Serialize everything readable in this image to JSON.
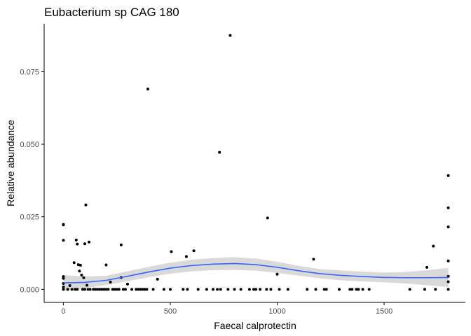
{
  "chart_data": {
    "type": "scatter",
    "title": "Eubacterium sp CAG 180",
    "xlabel": "Faecal calprotectin",
    "ylabel": "Relative abundance",
    "xlim": [
      -90,
      1880
    ],
    "ylim": [
      -0.0045,
      0.0915
    ],
    "x_ticks": [
      0,
      500,
      1000,
      1500
    ],
    "x_tick_labels": [
      "0",
      "500",
      "1000",
      "1500"
    ],
    "y_ticks": [
      0.0,
      0.025,
      0.05,
      0.075
    ],
    "y_tick_labels": [
      "0.000",
      "0.025",
      "0.050",
      "0.075"
    ],
    "grid": false,
    "colors": {
      "points": "#000000",
      "smooth_line": "#3366ff",
      "confidence_band": "#d9d9d9",
      "axis": "#000000"
    },
    "points": [
      {
        "x": 0,
        "y": 0.0224
      },
      {
        "x": 0,
        "y": 0.0222
      },
      {
        "x": 0,
        "y": 0.0169
      },
      {
        "x": 0,
        "y": 0.0044
      },
      {
        "x": 0,
        "y": 0.0038
      },
      {
        "x": 0,
        "y": 0.002
      },
      {
        "x": 0,
        "y": 0.0008
      },
      {
        "x": 0,
        "y": 0.0
      },
      {
        "x": 20,
        "y": 0.0
      },
      {
        "x": 30,
        "y": 0.0013
      },
      {
        "x": 40,
        "y": 0.0
      },
      {
        "x": 50,
        "y": 0.0092
      },
      {
        "x": 55,
        "y": 0.0
      },
      {
        "x": 60,
        "y": 0.017
      },
      {
        "x": 65,
        "y": 0.0156
      },
      {
        "x": 65,
        "y": 0.0
      },
      {
        "x": 70,
        "y": 0.0085
      },
      {
        "x": 75,
        "y": 0.0063
      },
      {
        "x": 80,
        "y": 0.0083
      },
      {
        "x": 85,
        "y": 0.0049
      },
      {
        "x": 90,
        "y": 0.0
      },
      {
        "x": 95,
        "y": 0.004
      },
      {
        "x": 100,
        "y": 0.0157
      },
      {
        "x": 100,
        "y": 0.0
      },
      {
        "x": 105,
        "y": 0.0291
      },
      {
        "x": 110,
        "y": 0.0014
      },
      {
        "x": 115,
        "y": 0.0
      },
      {
        "x": 120,
        "y": 0.0163
      },
      {
        "x": 125,
        "y": 0.0
      },
      {
        "x": 140,
        "y": 0.0
      },
      {
        "x": 150,
        "y": 0.0
      },
      {
        "x": 160,
        "y": 0.0
      },
      {
        "x": 170,
        "y": 0.0
      },
      {
        "x": 180,
        "y": 0.0
      },
      {
        "x": 190,
        "y": 0.0
      },
      {
        "x": 200,
        "y": 0.0
      },
      {
        "x": 200,
        "y": 0.0084
      },
      {
        "x": 210,
        "y": 0.0
      },
      {
        "x": 220,
        "y": 0.0025
      },
      {
        "x": 230,
        "y": 0.0
      },
      {
        "x": 240,
        "y": 0.0
      },
      {
        "x": 250,
        "y": 0.0
      },
      {
        "x": 260,
        "y": 0.0
      },
      {
        "x": 270,
        "y": 0.0153
      },
      {
        "x": 270,
        "y": 0.0041
      },
      {
        "x": 280,
        "y": 0.0
      },
      {
        "x": 290,
        "y": 0.0
      },
      {
        "x": 300,
        "y": 0.0018
      },
      {
        "x": 320,
        "y": 0.0
      },
      {
        "x": 340,
        "y": 0.0
      },
      {
        "x": 350,
        "y": 0.0
      },
      {
        "x": 360,
        "y": 0.0
      },
      {
        "x": 370,
        "y": 0.0
      },
      {
        "x": 380,
        "y": 0.0
      },
      {
        "x": 390,
        "y": 0.0
      },
      {
        "x": 395,
        "y": 0.069
      },
      {
        "x": 420,
        "y": 0.0
      },
      {
        "x": 440,
        "y": 0.0035
      },
      {
        "x": 470,
        "y": 0.0
      },
      {
        "x": 500,
        "y": 0.0
      },
      {
        "x": 505,
        "y": 0.013
      },
      {
        "x": 560,
        "y": 0.0
      },
      {
        "x": 575,
        "y": 0.0113
      },
      {
        "x": 580,
        "y": 0.0
      },
      {
        "x": 610,
        "y": 0.0133
      },
      {
        "x": 630,
        "y": 0.0
      },
      {
        "x": 670,
        "y": 0.0
      },
      {
        "x": 700,
        "y": 0.0
      },
      {
        "x": 720,
        "y": 0.0
      },
      {
        "x": 730,
        "y": 0.0472
      },
      {
        "x": 735,
        "y": 0.0
      },
      {
        "x": 770,
        "y": 0.0
      },
      {
        "x": 780,
        "y": 0.0875
      },
      {
        "x": 800,
        "y": 0.0
      },
      {
        "x": 830,
        "y": 0.0
      },
      {
        "x": 870,
        "y": 0.0
      },
      {
        "x": 890,
        "y": 0.0
      },
      {
        "x": 900,
        "y": 0.0
      },
      {
        "x": 920,
        "y": 0.0
      },
      {
        "x": 950,
        "y": 0.0
      },
      {
        "x": 955,
        "y": 0.0246
      },
      {
        "x": 970,
        "y": 0.0
      },
      {
        "x": 1000,
        "y": 0.0052
      },
      {
        "x": 1010,
        "y": 0.0
      },
      {
        "x": 1050,
        "y": 0.0
      },
      {
        "x": 1140,
        "y": 0.0
      },
      {
        "x": 1170,
        "y": 0.0104
      },
      {
        "x": 1180,
        "y": 0.0
      },
      {
        "x": 1220,
        "y": 0.0
      },
      {
        "x": 1230,
        "y": 0.0
      },
      {
        "x": 1290,
        "y": 0.0
      },
      {
        "x": 1340,
        "y": 0.0
      },
      {
        "x": 1350,
        "y": 0.0
      },
      {
        "x": 1370,
        "y": 0.0
      },
      {
        "x": 1380,
        "y": 0.0
      },
      {
        "x": 1400,
        "y": 0.0
      },
      {
        "x": 1430,
        "y": 0.0
      },
      {
        "x": 1620,
        "y": 0.0
      },
      {
        "x": 1690,
        "y": 0.0
      },
      {
        "x": 1700,
        "y": 0.0076
      },
      {
        "x": 1730,
        "y": 0.0149
      },
      {
        "x": 1740,
        "y": 0.0
      },
      {
        "x": 1800,
        "y": 0.0392
      },
      {
        "x": 1800,
        "y": 0.0281
      },
      {
        "x": 1800,
        "y": 0.0215
      },
      {
        "x": 1800,
        "y": 0.0098
      },
      {
        "x": 1800,
        "y": 0.0045
      },
      {
        "x": 1800,
        "y": 0.0026
      },
      {
        "x": 1800,
        "y": 0.0
      }
    ],
    "smooth": {
      "method": "loess",
      "x": [
        0,
        100,
        200,
        300,
        400,
        500,
        600,
        700,
        800,
        900,
        1000,
        1100,
        1200,
        1300,
        1400,
        1500,
        1600,
        1700,
        1800
      ],
      "y": [
        0.0022,
        0.0024,
        0.0031,
        0.0045,
        0.006,
        0.0073,
        0.0082,
        0.0087,
        0.0089,
        0.0085,
        0.0076,
        0.0064,
        0.0054,
        0.0048,
        0.0044,
        0.0041,
        0.004,
        0.004,
        0.0041
      ],
      "lower": [
        -0.0005,
        0.0004,
        0.0015,
        0.0028,
        0.0042,
        0.0054,
        0.0062,
        0.0066,
        0.0067,
        0.0064,
        0.0057,
        0.0047,
        0.0038,
        0.0031,
        0.0027,
        0.0024,
        0.002,
        0.0014,
        0.0008
      ],
      "upper": [
        0.0049,
        0.0044,
        0.0047,
        0.0062,
        0.0078,
        0.0092,
        0.0102,
        0.0108,
        0.0111,
        0.0106,
        0.0095,
        0.0081,
        0.007,
        0.0065,
        0.0061,
        0.0058,
        0.006,
        0.0066,
        0.0074
      ]
    }
  }
}
